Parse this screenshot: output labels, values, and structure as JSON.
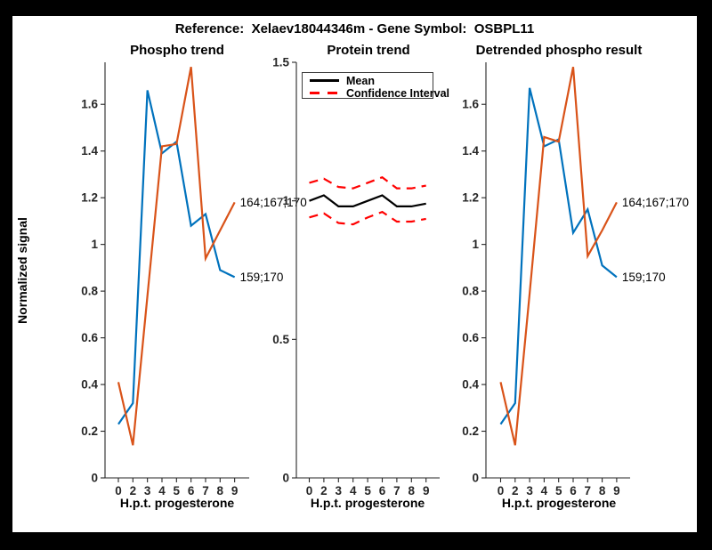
{
  "figure": {
    "title": "Reference:  Xelaev18044346m - Gene Symbol:  OSBPL11"
  },
  "colors": {
    "series_blue": "#0072BD",
    "series_orange": "#D95319",
    "mean_black": "#000000",
    "ci_red": "#FF0000",
    "axis": "#262626",
    "background": "#FFFFFF",
    "frame": "#000000"
  },
  "chart_data": [
    {
      "type": "line",
      "title": "Phospho trend",
      "xlabel": "H.p.t. progesterone",
      "ylabel": "Normalized signal",
      "x_ticks": [
        "0",
        "2",
        "3",
        "4",
        "5",
        "6",
        "7",
        "8",
        "9"
      ],
      "y_ticks": [
        {
          "v": 0,
          "label": "0"
        },
        {
          "v": 0.2,
          "label": "0.2"
        },
        {
          "v": 0.4,
          "label": "0.4"
        },
        {
          "v": 0.6,
          "label": "0.6"
        },
        {
          "v": 0.8,
          "label": "0.8"
        },
        {
          "v": 1,
          "label": "1"
        },
        {
          "v": 1.2,
          "label": "1.2"
        },
        {
          "v": 1.4,
          "label": "1.4"
        },
        {
          "v": 1.6,
          "label": "1.6"
        }
      ],
      "ylim": [
        0,
        1.78
      ],
      "grid": false,
      "series": [
        {
          "name": "159;170",
          "color": "#0072BD",
          "style": "solid",
          "values": [
            0.23,
            0.32,
            1.66,
            1.39,
            1.44,
            1.08,
            1.13,
            0.89,
            0.86
          ],
          "annotation": "159;170"
        },
        {
          "name": "164;167;170",
          "color": "#D95319",
          "style": "solid",
          "values": [
            0.41,
            0.14,
            0.78,
            1.42,
            1.43,
            1.76,
            0.94,
            1.06,
            1.18
          ],
          "annotation": "164;167;170"
        }
      ]
    },
    {
      "type": "line",
      "title": "Protein trend",
      "xlabel": "H.p.t. progesterone",
      "ylabel": "",
      "x_ticks": [
        "0",
        "2",
        "3",
        "4",
        "5",
        "6",
        "7",
        "8",
        "9"
      ],
      "y_ticks": [
        {
          "v": 0,
          "label": "0"
        },
        {
          "v": 0.5,
          "label": "0.5"
        },
        {
          "v": 1,
          "label": "1"
        },
        {
          "v": 1.5,
          "label": "1.5"
        }
      ],
      "ylim": [
        0,
        1.5
      ],
      "grid": false,
      "legend": {
        "position": "top",
        "entries": [
          {
            "label": "Mean",
            "color": "#000000",
            "style": "solid"
          },
          {
            "label": "Confidence Interval",
            "color": "#FF0000",
            "style": "dashed"
          }
        ]
      },
      "series": [
        {
          "name": "Mean",
          "color": "#000000",
          "style": "solid",
          "values": [
            1.0,
            1.02,
            0.98,
            0.98,
            1.0,
            1.02,
            0.98,
            0.98,
            0.99
          ]
        },
        {
          "name": "Confidence Interval upper",
          "color": "#FF0000",
          "style": "dashed",
          "values": [
            1.065,
            1.08,
            1.05,
            1.045,
            1.065,
            1.085,
            1.045,
            1.045,
            1.055
          ]
        },
        {
          "name": "Confidence Interval lower",
          "color": "#FF0000",
          "style": "dashed",
          "values": [
            0.94,
            0.955,
            0.92,
            0.915,
            0.94,
            0.96,
            0.925,
            0.925,
            0.935
          ]
        }
      ]
    },
    {
      "type": "line",
      "title": "Detrended phospho result",
      "xlabel": "H.p.t. progesterone",
      "ylabel": "",
      "x_ticks": [
        "0",
        "2",
        "3",
        "4",
        "5",
        "6",
        "7",
        "8",
        "9"
      ],
      "y_ticks": [
        {
          "v": 0,
          "label": "0"
        },
        {
          "v": 0.2,
          "label": "0.2"
        },
        {
          "v": 0.4,
          "label": "0.4"
        },
        {
          "v": 0.6,
          "label": "0.6"
        },
        {
          "v": 0.8,
          "label": "0.8"
        },
        {
          "v": 1,
          "label": "1"
        },
        {
          "v": 1.2,
          "label": "1.2"
        },
        {
          "v": 1.4,
          "label": "1.4"
        },
        {
          "v": 1.6,
          "label": "1.6"
        }
      ],
      "ylim": [
        0,
        1.78
      ],
      "grid": false,
      "series": [
        {
          "name": "159;170",
          "color": "#0072BD",
          "style": "solid",
          "values": [
            0.23,
            0.32,
            1.67,
            1.42,
            1.45,
            1.05,
            1.15,
            0.91,
            0.86
          ],
          "annotation": "159;170"
        },
        {
          "name": "164;167;170",
          "color": "#D95319",
          "style": "solid",
          "values": [
            0.41,
            0.14,
            0.79,
            1.46,
            1.44,
            1.76,
            0.95,
            1.06,
            1.18
          ],
          "annotation": "164;167;170"
        }
      ]
    }
  ]
}
